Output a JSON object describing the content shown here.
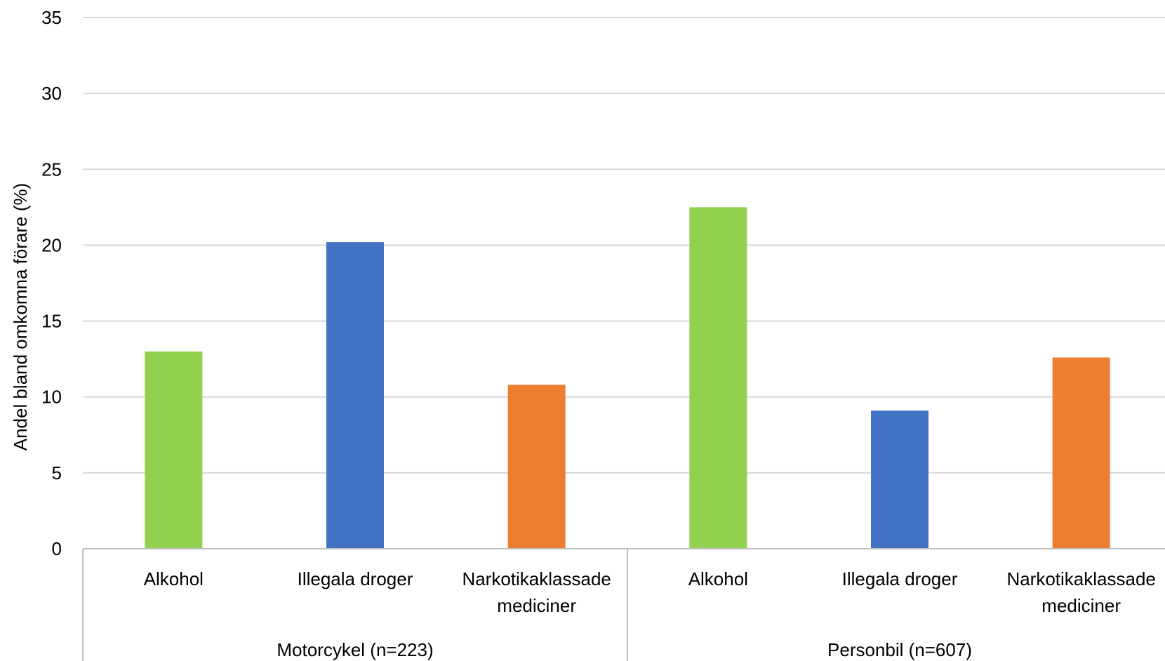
{
  "chart_data": {
    "type": "bar",
    "ylabel": "Andel bland omkomna förare (%)",
    "ylim": [
      0,
      35
    ],
    "yticks": [
      0,
      5,
      10,
      15,
      20,
      25,
      30,
      35
    ],
    "grid": true,
    "groups": [
      {
        "label": "Motorcykel (n=223)",
        "bars": [
          {
            "category": "Alkohol",
            "value": 13.0,
            "color": "#92d050"
          },
          {
            "category": "Illegala droger",
            "value": 20.2,
            "color": "#4472c4"
          },
          {
            "category": "Narkotikaklassade mediciner",
            "value": 10.8,
            "color": "#ed7d31"
          }
        ]
      },
      {
        "label": "Personbil (n=607)",
        "bars": [
          {
            "category": "Alkohol",
            "value": 22.5,
            "color": "#92d050"
          },
          {
            "category": "Illegala droger",
            "value": 9.1,
            "color": "#4472c4"
          },
          {
            "category": "Narkotikaklassade mediciner",
            "value": 12.6,
            "color": "#ed7d31"
          }
        ]
      }
    ]
  }
}
